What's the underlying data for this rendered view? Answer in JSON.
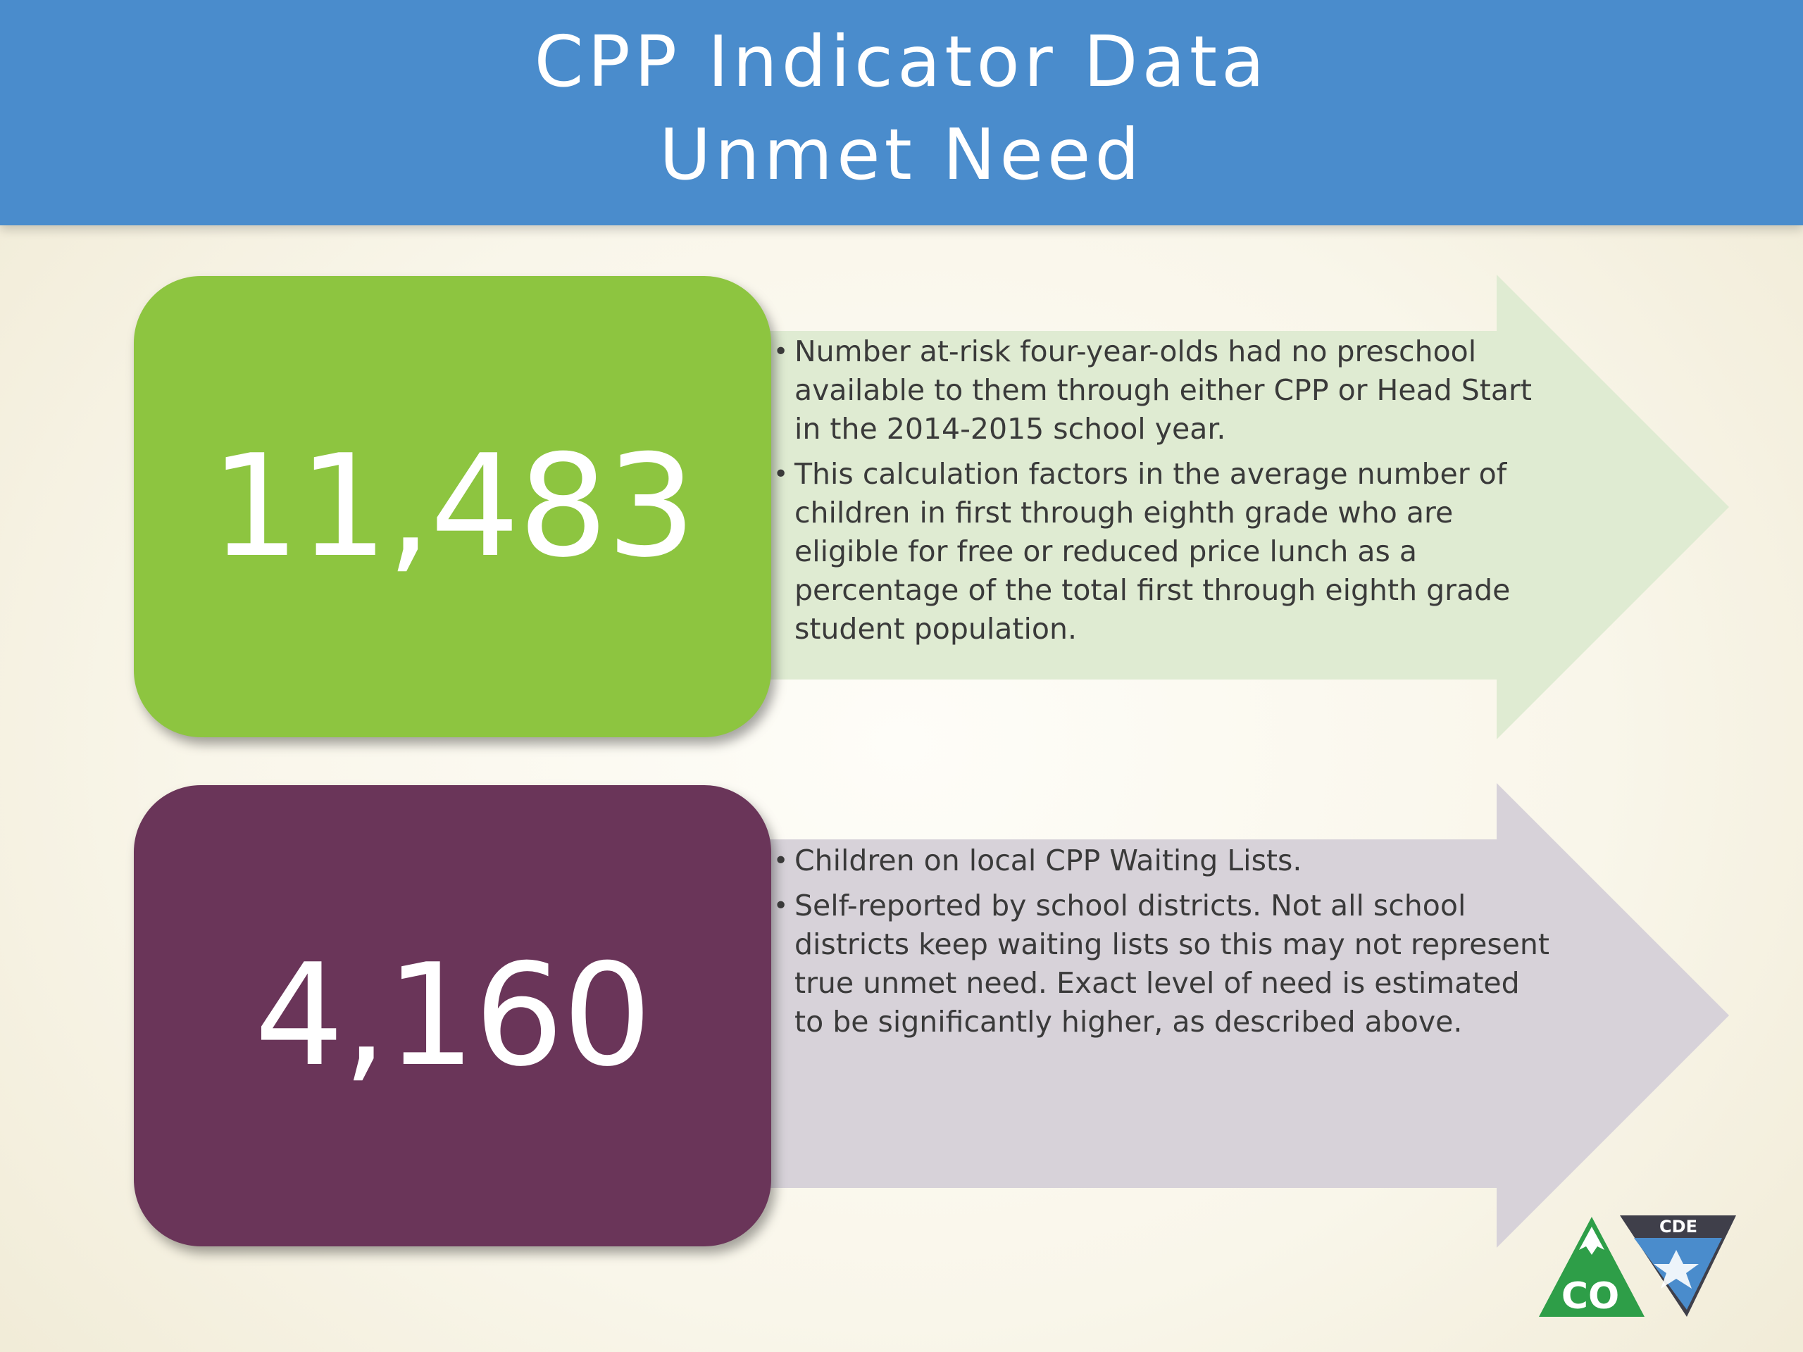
{
  "header": {
    "title_line1": "CPP Indicator Data",
    "title_line2": "Unmet Need"
  },
  "cards": [
    {
      "value": "11,483",
      "box_color": "#8dc540",
      "arrow_color": "#dfebd2",
      "bullets": [
        "Number at-risk four-year-olds had no preschool available to them through either CPP or Head Start in the 2014-2015 school year.",
        "This calculation factors in the average number of children in first through eighth grade who are eligible for free or reduced price lunch as a percentage of the total first through eighth grade student population."
      ]
    },
    {
      "value": "4,160",
      "box_color": "#6a3559",
      "arrow_color": "#d7d2d9",
      "bullets": [
        "Children on local CPP Waiting Lists.",
        "Self-reported by school districts. Not all school districts keep waiting lists so this may not represent true unmet need. Exact level of need is estimated to be significantly higher, as described above."
      ]
    }
  ],
  "logos": {
    "co_logo": "CO",
    "cde_logo": "CDE"
  }
}
